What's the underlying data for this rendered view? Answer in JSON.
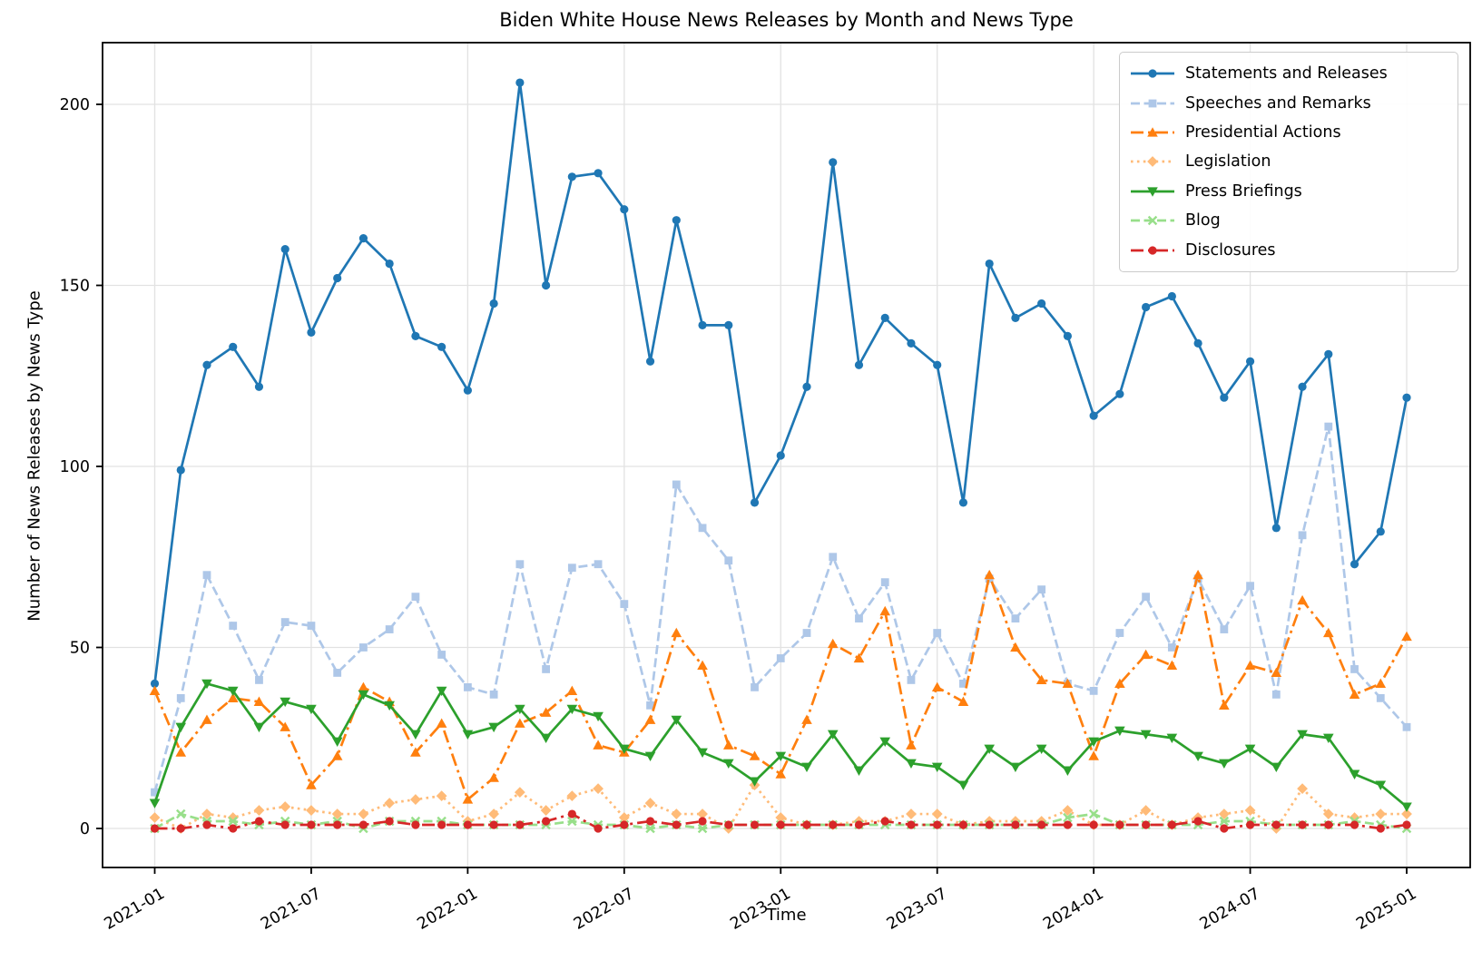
{
  "title": "Biden White House News Releases by Month and News Type",
  "x_label": "Time",
  "y_label": "Number of News Releases by News Type",
  "chart_data": {
    "type": "line",
    "x": [
      "2021-01",
      "2021-02",
      "2021-03",
      "2021-04",
      "2021-05",
      "2021-06",
      "2021-07",
      "2021-08",
      "2021-09",
      "2021-10",
      "2021-11",
      "2021-12",
      "2022-01",
      "2022-02",
      "2022-03",
      "2022-04",
      "2022-05",
      "2022-06",
      "2022-07",
      "2022-08",
      "2022-09",
      "2022-10",
      "2022-11",
      "2022-12",
      "2023-01",
      "2023-02",
      "2023-03",
      "2023-04",
      "2023-05",
      "2023-06",
      "2023-07",
      "2023-08",
      "2023-09",
      "2023-10",
      "2023-11",
      "2023-12",
      "2024-01",
      "2024-02",
      "2024-03",
      "2024-04",
      "2024-05",
      "2024-06",
      "2024-07",
      "2024-08",
      "2024-09",
      "2024-10",
      "2024-11",
      "2024-12",
      "2025-01"
    ],
    "x_tick_labels": [
      "2021-01",
      "2021-07",
      "2022-01",
      "2022-07",
      "2023-01",
      "2023-07",
      "2024-01",
      "2024-07",
      "2025-01"
    ],
    "x_tick_indices": [
      0,
      6,
      12,
      18,
      24,
      30,
      36,
      42,
      48
    ],
    "y_ticks": [
      0,
      50,
      100,
      150,
      200
    ],
    "ylim": [
      -11,
      217
    ],
    "grid": true,
    "legend_position": "upper right",
    "series": [
      {
        "name": "Statements and Releases",
        "color": "#1f77b4",
        "line": "solid",
        "marker": "circle",
        "values": [
          40,
          99,
          128,
          133,
          122,
          160,
          137,
          152,
          163,
          156,
          136,
          133,
          121,
          145,
          206,
          150,
          180,
          181,
          171,
          129,
          168,
          139,
          139,
          90,
          103,
          122,
          184,
          128,
          141,
          134,
          128,
          90,
          156,
          141,
          145,
          136,
          114,
          120,
          144,
          147,
          134,
          119,
          129,
          83,
          122,
          131,
          73,
          82,
          119
        ]
      },
      {
        "name": "Speeches and Remarks",
        "color": "#aec7e8",
        "line": "dashed",
        "marker": "square",
        "values": [
          10,
          36,
          70,
          56,
          41,
          57,
          56,
          43,
          50,
          55,
          64,
          48,
          39,
          37,
          73,
          44,
          72,
          73,
          62,
          34,
          95,
          83,
          74,
          39,
          47,
          54,
          75,
          58,
          68,
          41,
          54,
          40,
          69,
          58,
          66,
          40,
          38,
          54,
          64,
          50,
          69,
          55,
          67,
          37,
          81,
          111,
          44,
          36,
          28
        ]
      },
      {
        "name": "Presidential Actions",
        "color": "#ff7f0e",
        "line": "dashdot",
        "marker": "triangle-up",
        "values": [
          38,
          21,
          30,
          36,
          35,
          28,
          12,
          20,
          39,
          35,
          21,
          29,
          8,
          14,
          29,
          32,
          38,
          23,
          21,
          30,
          54,
          45,
          23,
          20,
          15,
          30,
          51,
          47,
          60,
          23,
          39,
          35,
          70,
          50,
          41,
          40,
          20,
          40,
          48,
          45,
          70,
          34,
          45,
          43,
          63,
          54,
          37,
          40,
          53
        ]
      },
      {
        "name": "Legislation",
        "color": "#ffbb78",
        "line": "dotted",
        "marker": "diamond",
        "values": [
          3,
          0,
          4,
          3,
          5,
          6,
          5,
          4,
          4,
          7,
          8,
          9,
          2,
          4,
          10,
          5,
          9,
          11,
          3,
          7,
          4,
          4,
          0,
          12,
          3,
          1,
          1,
          2,
          2,
          4,
          4,
          1,
          2,
          2,
          2,
          5,
          1,
          1,
          5,
          1,
          3,
          4,
          5,
          0,
          11,
          4,
          3,
          4,
          4
        ]
      },
      {
        "name": "Press Briefings",
        "color": "#2ca02c",
        "line": "solid",
        "marker": "triangle-down",
        "values": [
          7,
          28,
          40,
          38,
          28,
          35,
          33,
          24,
          37,
          34,
          26,
          38,
          26,
          28,
          33,
          25,
          33,
          31,
          22,
          20,
          30,
          21,
          18,
          13,
          20,
          17,
          26,
          16,
          24,
          18,
          17,
          12,
          22,
          17,
          22,
          16,
          24,
          27,
          26,
          25,
          20,
          18,
          22,
          17,
          26,
          25,
          15,
          12,
          6
        ]
      },
      {
        "name": "Blog",
        "color": "#98df8a",
        "line": "dashed",
        "marker": "x",
        "values": [
          0,
          4,
          2,
          2,
          1,
          2,
          1,
          2,
          0,
          2,
          2,
          2,
          1,
          1,
          1,
          1,
          2,
          1,
          1,
          0,
          1,
          0,
          1,
          1,
          1,
          1,
          1,
          1,
          1,
          1,
          1,
          1,
          1,
          1,
          1,
          3,
          4,
          1,
          1,
          1,
          1,
          2,
          2,
          1,
          1,
          1,
          2,
          1,
          0
        ]
      },
      {
        "name": "Disclosures",
        "color": "#d62728",
        "line": "dashdot",
        "marker": "circle",
        "values": [
          0,
          0,
          1,
          0,
          2,
          1,
          1,
          1,
          1,
          2,
          1,
          1,
          1,
          1,
          1,
          2,
          4,
          0,
          1,
          2,
          1,
          2,
          1,
          1,
          1,
          1,
          1,
          1,
          2,
          1,
          1,
          1,
          1,
          1,
          1,
          1,
          1,
          1,
          1,
          1,
          2,
          0,
          1,
          1,
          1,
          1,
          1,
          0,
          1
        ]
      }
    ]
  }
}
